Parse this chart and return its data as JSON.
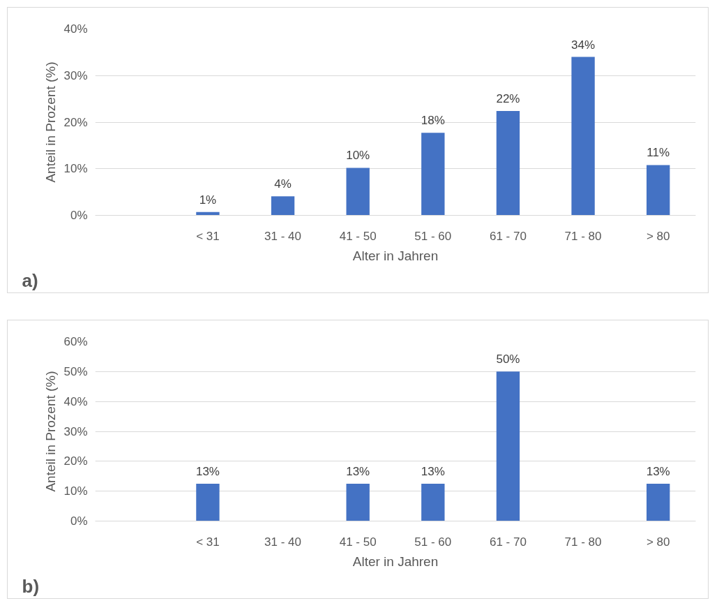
{
  "chart_data": [
    {
      "type": "bar",
      "xlabel": "Alter in Jahren",
      "ylabel": "Anteil in Prozent (%)",
      "annotations": [
        "a)"
      ],
      "categories": [
        null,
        "< 31",
        "31 - 40",
        "41 - 50",
        "51 - 60",
        "61 - 70",
        "71 - 80",
        "> 80"
      ],
      "values": [
        null,
        0.7,
        4.1,
        10.2,
        17.7,
        22.4,
        34,
        10.8
      ],
      "value_labels": [
        null,
        "1%",
        "4%",
        "10%",
        "18%",
        "22%",
        "34%",
        "11%"
      ],
      "color": "#4472c4",
      "ylim": [
        0,
        40
      ],
      "yticks": [
        {
          "value": 0,
          "label": "0%"
        },
        {
          "value": 10,
          "label": "10%"
        },
        {
          "value": 20,
          "label": "20%"
        },
        {
          "value": 30,
          "label": "30%"
        },
        {
          "value": 40,
          "label": "40%"
        }
      ],
      "grid": "y"
    },
    {
      "type": "bar",
      "xlabel": "Alter in Jahren",
      "ylabel": "Anteil in Prozent (%)",
      "annotations": [
        "b)"
      ],
      "categories": [
        null,
        "< 31",
        "31 - 40",
        "41 - 50",
        "51 - 60",
        "61 - 70",
        "71 - 80",
        "> 80"
      ],
      "values": [
        null,
        12.5,
        null,
        12.5,
        12.5,
        50,
        null,
        12.5
      ],
      "value_labels": [
        null,
        "13%",
        null,
        "13%",
        "13%",
        "50%",
        null,
        "13%"
      ],
      "color": "#4472c4",
      "ylim": [
        0,
        60
      ],
      "yticks": [
        {
          "value": 0,
          "label": "0%"
        },
        {
          "value": 10,
          "label": "10%"
        },
        {
          "value": 20,
          "label": "20%"
        },
        {
          "value": 30,
          "label": "30%"
        },
        {
          "value": 40,
          "label": "40%"
        },
        {
          "value": 50,
          "label": "50%"
        },
        {
          "value": 60,
          "label": "60%"
        }
      ],
      "grid": "y"
    }
  ]
}
